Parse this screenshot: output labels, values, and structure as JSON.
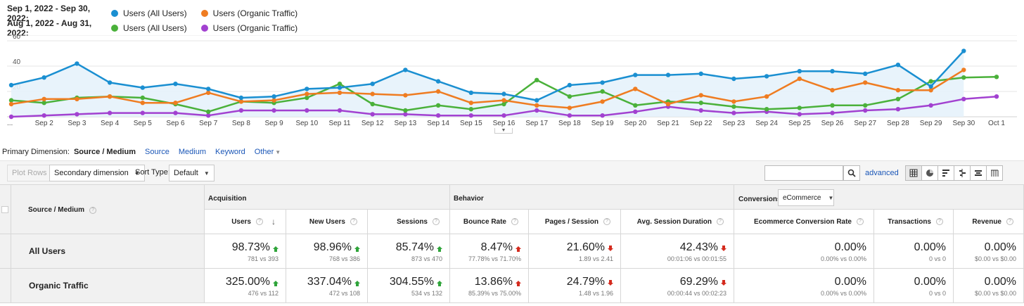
{
  "legend": {
    "rows": [
      {
        "date_range": "Sep 1, 2022 - Sep 30, 2022:",
        "items": [
          {
            "label": "Users (All Users)",
            "color": "#1a8fd1"
          },
          {
            "label": "Users (Organic Traffic)",
            "color": "#ef7c21"
          }
        ]
      },
      {
        "date_range": "Aug 1, 2022 - Aug 31, 2022:",
        "items": [
          {
            "label": "Users (All Users)",
            "color": "#4ab13a"
          },
          {
            "label": "Users (Organic Traffic)",
            "color": "#a241d0"
          }
        ]
      }
    ]
  },
  "chart_data": {
    "type": "line",
    "x": [
      "...",
      "Sep 2",
      "Sep 3",
      "Sep 4",
      "Sep 5",
      "Sep 6",
      "Sep 7",
      "Sep 8",
      "Sep 9",
      "Sep 10",
      "Sep 11",
      "Sep 12",
      "Sep 13",
      "Sep 14",
      "Sep 15",
      "Sep 16",
      "Sep 17",
      "Sep 18",
      "Sep 19",
      "Sep 20",
      "Sep 21",
      "Sep 22",
      "Sep 23",
      "Sep 24",
      "Sep 25",
      "Sep 26",
      "Sep 27",
      "Sep 28",
      "Sep 29",
      "Sep 30",
      "Oct 1"
    ],
    "yticks": [
      20,
      40,
      60
    ],
    "ylim": [
      0,
      60
    ],
    "grid": true,
    "series": [
      {
        "name": "Users (All Users)",
        "period": "Sep 1, 2022 - Sep 30, 2022",
        "color": "#1a8fd1",
        "fill": true,
        "values": [
          25,
          31,
          42,
          27,
          23,
          26,
          22,
          15,
          16,
          22,
          23,
          26,
          37,
          28,
          19,
          18,
          13,
          25,
          27,
          33,
          33,
          34,
          30,
          32,
          36,
          36,
          34,
          41,
          24,
          52,
          null
        ]
      },
      {
        "name": "Users (Organic Traffic)",
        "period": "Sep 1, 2022 - Sep 30, 2022",
        "color": "#ef7c21",
        "fill": false,
        "values": [
          10,
          14,
          14,
          16,
          11,
          11,
          19,
          12,
          13,
          18,
          19,
          18,
          17,
          20,
          11,
          13,
          9,
          7,
          12,
          22,
          10,
          17,
          12,
          16,
          30,
          21,
          27,
          21,
          21,
          37,
          null
        ]
      },
      {
        "name": "Users (All Users)",
        "period": "Aug 1, 2022 - Aug 31, 2022",
        "color": "#4ab13a",
        "fill": false,
        "values": [
          13,
          11,
          15,
          16,
          15,
          10,
          4,
          12,
          11,
          15,
          26,
          10,
          5,
          9,
          6,
          10,
          29,
          16,
          20,
          9,
          12,
          11,
          8,
          6,
          7,
          9,
          9,
          14,
          28,
          31,
          31.5
        ]
      },
      {
        "name": "Users (Organic Traffic)",
        "period": "Aug 1, 2022 - Aug 31, 2022",
        "color": "#a241d0",
        "fill": false,
        "values": [
          0,
          1,
          2,
          3,
          3,
          3,
          1,
          5,
          5,
          5,
          5,
          2,
          2,
          1,
          1,
          1,
          5,
          1,
          1,
          4,
          8,
          5,
          3,
          4,
          2,
          3,
          5,
          6,
          9,
          14,
          16
        ]
      }
    ]
  },
  "primary_dimension": {
    "label": "Primary Dimension:",
    "active": "Source / Medium",
    "links": [
      "Source",
      "Medium",
      "Keyword",
      "Other"
    ]
  },
  "toolbar": {
    "plot_rows": "Plot Rows",
    "secondary_dimension": "Secondary dimension",
    "sort_type_label": "Sort Type:",
    "sort_type_value": "Default",
    "search_placeholder": "",
    "advanced": "advanced",
    "view_icons": [
      "data-table-icon",
      "pie-chart-icon",
      "performance-bar-icon",
      "comparison-icon",
      "term-cloud-icon",
      "pivot-icon"
    ]
  },
  "table": {
    "groups": {
      "acquisition": "Acquisition",
      "behavior": "Behavior",
      "conversions": "Conversions"
    },
    "conversions_select": "eCommerce",
    "dimension_header": "Source / Medium",
    "columns": [
      "Users",
      "New Users",
      "Sessions",
      "Bounce Rate",
      "Pages / Session",
      "Avg. Session Duration",
      "Ecommerce Conversion Rate",
      "Transactions",
      "Revenue"
    ],
    "rows": [
      {
        "label": "All Users",
        "cells": [
          {
            "pct": "98.73%",
            "dir": "up",
            "cmp": "781 vs 393"
          },
          {
            "pct": "98.96%",
            "dir": "up",
            "cmp": "768 vs 386"
          },
          {
            "pct": "85.74%",
            "dir": "up",
            "cmp": "873 vs 470"
          },
          {
            "pct": "8.47%",
            "dir": "up-red",
            "cmp": "77.78% vs 71.70%"
          },
          {
            "pct": "21.60%",
            "dir": "down",
            "cmp": "1.89 vs 2.41"
          },
          {
            "pct": "42.43%",
            "dir": "down",
            "cmp": "00:01:06 vs 00:01:55"
          },
          {
            "pct": "0.00%",
            "dir": "none",
            "cmp": "0.00% vs 0.00%"
          },
          {
            "pct": "0.00%",
            "dir": "none",
            "cmp": "0 vs 0"
          },
          {
            "pct": "0.00%",
            "dir": "none",
            "cmp": "$0.00 vs $0.00"
          }
        ]
      },
      {
        "label": "Organic Traffic",
        "cells": [
          {
            "pct": "325.00%",
            "dir": "up",
            "cmp": "476 vs 112"
          },
          {
            "pct": "337.04%",
            "dir": "up",
            "cmp": "472 vs 108"
          },
          {
            "pct": "304.55%",
            "dir": "up",
            "cmp": "534 vs 132"
          },
          {
            "pct": "13.86%",
            "dir": "up-red",
            "cmp": "85.39% vs 75.00%"
          },
          {
            "pct": "24.79%",
            "dir": "down",
            "cmp": "1.48 vs 1.96"
          },
          {
            "pct": "69.29%",
            "dir": "down",
            "cmp": "00:00:44 vs 00:02:23"
          },
          {
            "pct": "0.00%",
            "dir": "none",
            "cmp": "0.00% vs 0.00%"
          },
          {
            "pct": "0.00%",
            "dir": "none",
            "cmp": "0 vs 0"
          },
          {
            "pct": "0.00%",
            "dir": "none",
            "cmp": "$0.00 vs $0.00"
          }
        ]
      }
    ]
  }
}
